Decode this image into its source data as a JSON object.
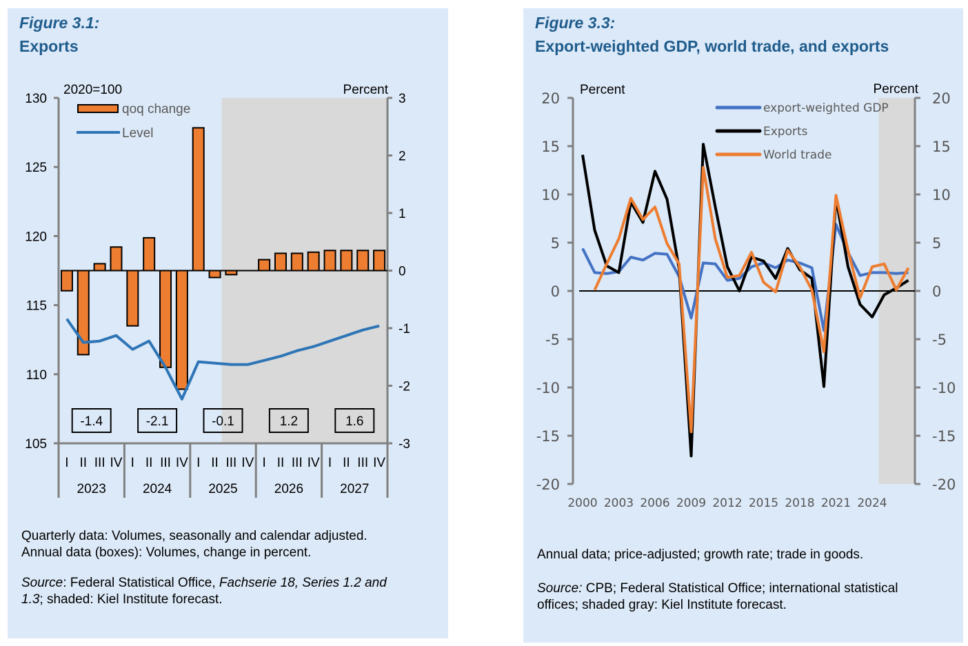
{
  "figures": [
    {
      "label": "Figure 3.1:",
      "title": "Exports",
      "note_lines": [
        "Quarterly data: Volumes, seasonally and calendar adjusted.",
        "Annual data (boxes): Volumes, change in percent."
      ],
      "source_prefix": "Source",
      "source_text_1": ": Federal Statistical Office, ",
      "source_italic": "Fachserie 18, Series 1.2 and",
      "source_line2_italic": "1.3",
      "source_text_2": "; shaded: Kiel Institute forecast."
    },
    {
      "label": "Figure 3.3:",
      "title": "Export-weighted GDP, world trade, and exports",
      "note_lines": [
        "Annual data; price-adjusted; growth rate; trade in goods."
      ],
      "source_prefix": "Source:",
      "source_text_1": " CPB; Federal Statistical Office; international statistical",
      "source_text_2": "offices; shaded gray: Kiel Institute forecast."
    }
  ],
  "chart_data": [
    {
      "type": "bar",
      "title": "Exports",
      "left_axis_label": "2020=100",
      "right_axis_label": "Percent",
      "left_ylim": [
        105,
        130
      ],
      "left_ticks": [
        "105",
        "110",
        "115",
        "120",
        "125",
        "130"
      ],
      "right_ylim": [
        -3,
        3
      ],
      "right_ticks": [
        "-3",
        "-2",
        "-1",
        "0",
        "1",
        "2",
        "3"
      ],
      "quarter_labels": [
        "I",
        "II",
        "III",
        "IV"
      ],
      "years": [
        "2023",
        "2024",
        "2025",
        "2025_",
        "2027"
      ],
      "year_labels": [
        "2023",
        "2024",
        "2025",
        "2026",
        "2027"
      ],
      "forecast_start": "2025 Q3",
      "legend": [
        {
          "name": "qoq change",
          "color": "#ed7d31",
          "kind": "bar",
          "position": "top-left"
        },
        {
          "name": "Level",
          "color": "#2e75b6",
          "kind": "line"
        }
      ],
      "series": [
        {
          "name": "qoq change",
          "axis": "right",
          "values": [
            -0.35,
            -1.46,
            0.12,
            0.41,
            -0.96,
            0.57,
            -1.68,
            -2.06,
            2.48,
            -0.12,
            -0.07,
            0.0,
            0.19,
            0.3,
            0.3,
            0.32,
            0.35,
            0.35,
            0.35,
            0.35
          ]
        },
        {
          "name": "Level",
          "axis": "left",
          "values": [
            114.0,
            112.3,
            112.4,
            112.8,
            111.8,
            112.4,
            110.5,
            108.2,
            110.9,
            110.8,
            110.7,
            110.7,
            111.0,
            111.3,
            111.7,
            112.0,
            112.4,
            112.8,
            113.2,
            113.5
          ]
        }
      ],
      "annual_boxes": [
        "-1.4",
        "-2.1",
        "-0.1",
        "1.2",
        "1.6"
      ],
      "colors": {
        "bar": "#ed7d31",
        "line": "#2e75b6",
        "shade": "#d9d9d9",
        "axis": "#808080"
      }
    },
    {
      "type": "line",
      "title": "Export-weighted GDP, world trade, and exports",
      "left_axis_label": "Percent",
      "right_axis_label": "Percent",
      "ylim": [
        -20,
        20
      ],
      "y_ticks": [
        "-20",
        "-15",
        "-10",
        "-5",
        "0",
        "5",
        "10",
        "15",
        "20"
      ],
      "x": [
        2000,
        2001,
        2002,
        2003,
        2004,
        2005,
        2006,
        2007,
        2008,
        2009,
        2010,
        2011,
        2012,
        2013,
        2014,
        2015,
        2016,
        2017,
        2018,
        2019,
        2020,
        2021,
        2022,
        2023,
        2024,
        2025,
        2026,
        2027
      ],
      "x_tick_labels": [
        "2000",
        "2003",
        "2006",
        "2009",
        "2012",
        "2015",
        "2018",
        "2021",
        "2024"
      ],
      "forecast_start": 2025,
      "legend": [
        {
          "name": "export-weighted GDP",
          "color": "#4472c4"
        },
        {
          "name": "Exports",
          "color": "#000000"
        },
        {
          "name": "World trade",
          "color": "#ed7d31"
        }
      ],
      "series": [
        {
          "name": "export-weighted GDP",
          "color": "#4472c4",
          "values": [
            4.4,
            1.9,
            1.8,
            2.0,
            3.5,
            3.2,
            3.9,
            3.8,
            1.5,
            -2.8,
            2.9,
            2.8,
            1.1,
            1.3,
            2.5,
            2.9,
            2.4,
            3.2,
            2.9,
            2.4,
            -4.1,
            6.9,
            4.0,
            1.6,
            1.9,
            1.9,
            1.8,
            1.9
          ]
        },
        {
          "name": "Exports",
          "color": "#000000",
          "values": [
            14.1,
            6.3,
            2.6,
            1.9,
            9.2,
            7.1,
            12.4,
            9.5,
            2.3,
            -17.1,
            15.2,
            8.7,
            2.5,
            0.0,
            3.5,
            3.1,
            1.3,
            4.4,
            2.2,
            1.3,
            -9.9,
            9.6,
            2.5,
            -1.4,
            -2.7,
            -0.4,
            0.3,
            1.1
          ]
        },
        {
          "name": "World trade",
          "color": "#ed7d31",
          "values": [
            null,
            0.1,
            2.8,
            5.4,
            9.6,
            7.4,
            8.7,
            4.9,
            2.8,
            -14.6,
            12.8,
            5.4,
            1.4,
            1.6,
            4.0,
            0.9,
            -0.1,
            4.2,
            2.5,
            0.1,
            -6.3,
            9.9,
            4.2,
            -0.7,
            2.5,
            2.8,
            0.1,
            2.4
          ]
        }
      ],
      "colors": {
        "shade": "#d9d9d9",
        "axis": "#808080",
        "zero_line": "#000000"
      }
    }
  ]
}
